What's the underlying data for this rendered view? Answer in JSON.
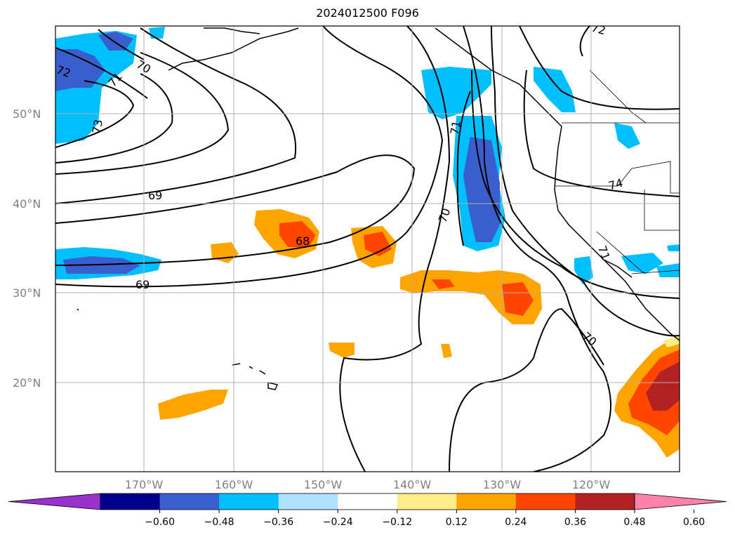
{
  "title": "2024012500 F096",
  "lat_labels": [
    "50°N",
    "40°N",
    "30°N",
    "20°N"
  ],
  "lon_labels": [
    "170°W",
    "160°W",
    "150°W",
    "140°W",
    "130°W",
    "120°W"
  ],
  "colorbar": {
    "ticks": [
      "−0.60",
      "−0.48",
      "−0.36",
      "−0.24",
      "−0.12",
      "0.12",
      "0.24",
      "0.36",
      "0.48",
      "0.60"
    ],
    "colors": [
      "#9932cc",
      "#00008b",
      "#3a5fcd",
      "#00bfff",
      "#b0e2ff",
      "#ffffff",
      "#ffec8b",
      "#ffa500",
      "#ff4500",
      "#b22222",
      "#ff82ab"
    ]
  },
  "contour_labels": [
    "72",
    "71",
    "73",
    "70",
    "69",
    "68",
    "69",
    "70",
    "71",
    "74",
    "72",
    "71",
    "70"
  ]
}
